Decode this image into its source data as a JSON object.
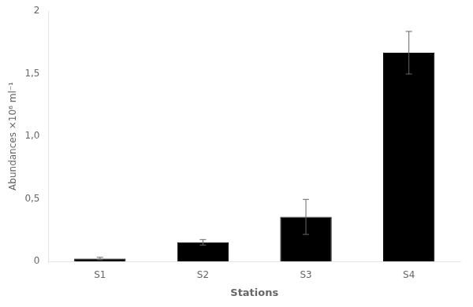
{
  "chart_data": {
    "type": "bar",
    "xlabel": "Stations",
    "ylabel": "Abundances ×10⁶ ml⁻¹",
    "categories": [
      "S1",
      "S2",
      "S3",
      "S4"
    ],
    "values": [
      0.022,
      0.152,
      0.355,
      1.667
    ],
    "errors": [
      0.01,
      0.022,
      0.14,
      0.17
    ],
    "color": "#000000",
    "ylim": [
      0,
      2.0
    ],
    "yticks": [
      0,
      {
        "value": 0.5,
        "label": "0,5"
      },
      {
        "value": 1.0,
        "label": "1,0"
      },
      {
        "value": 1.5,
        "label": "1,5"
      },
      2
    ],
    "grid": false
  }
}
